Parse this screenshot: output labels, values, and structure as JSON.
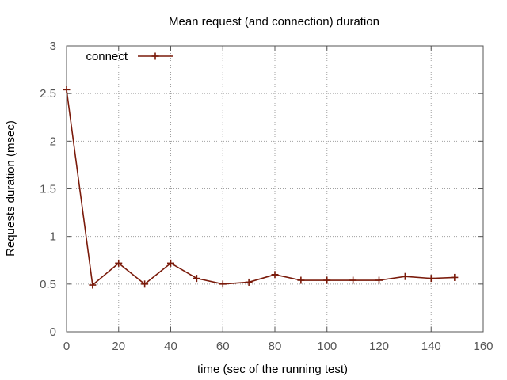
{
  "chart_data": {
    "type": "line",
    "title": "Mean request (and connection) duration",
    "xlabel": "time (sec of the running test)",
    "ylabel": "Requests duration (msec)",
    "xlim": [
      0,
      160
    ],
    "ylim": [
      0,
      3
    ],
    "xticks": [
      0,
      20,
      40,
      60,
      80,
      100,
      120,
      140,
      160
    ],
    "yticks": [
      0,
      0.5,
      1,
      1.5,
      2,
      2.5,
      3
    ],
    "xtick_labels": [
      "0",
      "20",
      "40",
      "60",
      "80",
      "100",
      "120",
      "140",
      "160"
    ],
    "ytick_labels": [
      "0",
      "0.5",
      "1",
      "1.5",
      "2",
      "2.5",
      "3"
    ],
    "grid": true,
    "legend_position": "top-left",
    "series": [
      {
        "name": "connect",
        "color": "#7a1a0a",
        "marker": "plus",
        "x": [
          0,
          10,
          20,
          30,
          40,
          50,
          60,
          70,
          80,
          90,
          100,
          110,
          120,
          130,
          140,
          149
        ],
        "y": [
          2.54,
          0.49,
          0.72,
          0.5,
          0.72,
          0.56,
          0.5,
          0.52,
          0.6,
          0.54,
          0.54,
          0.54,
          0.54,
          0.58,
          0.56,
          0.57
        ]
      }
    ]
  }
}
